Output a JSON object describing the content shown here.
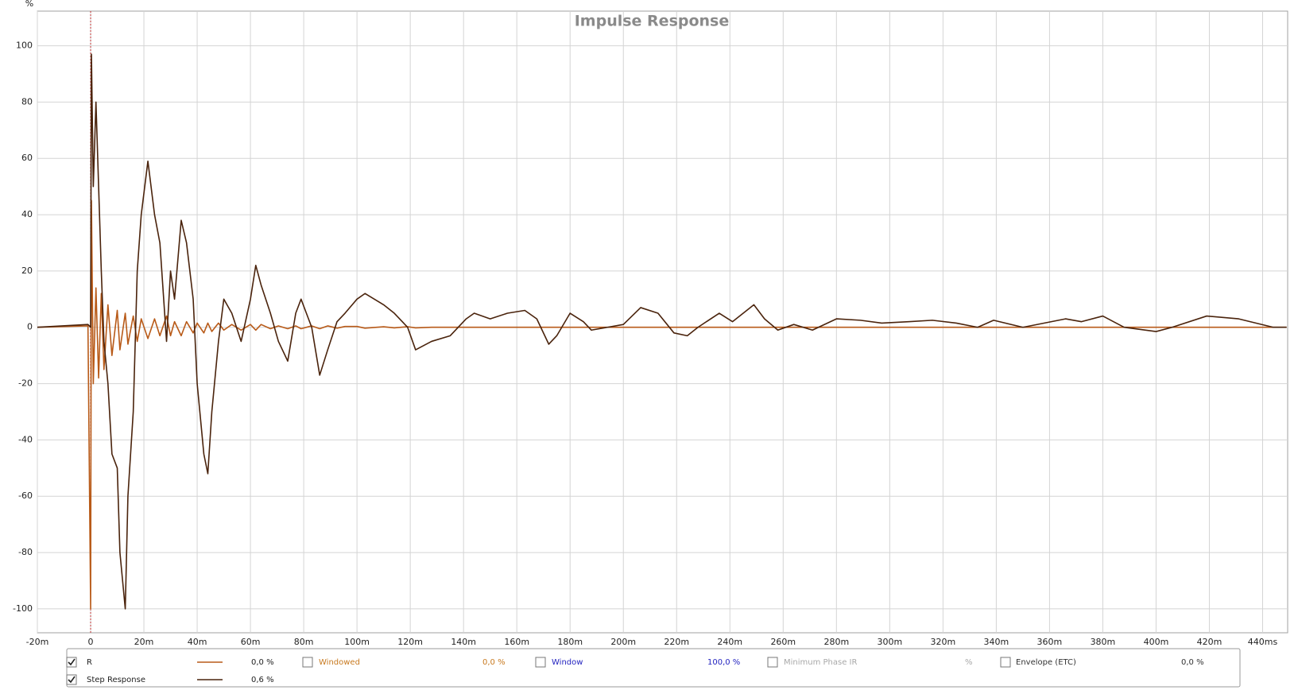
{
  "chart_data": {
    "type": "line",
    "title": "Impulse Response",
    "y_label": "%",
    "x": [
      -20,
      -1,
      0,
      0.3,
      1,
      2,
      3,
      4,
      5,
      6.5,
      8,
      10,
      11,
      13,
      14,
      16,
      17.5,
      19,
      21.5,
      24,
      26,
      28.5,
      30,
      31.5,
      34,
      36,
      38.5,
      40,
      42.5,
      44,
      45.5,
      48,
      50,
      53,
      56.5,
      60,
      62,
      64,
      67.5,
      70.5,
      74,
      77,
      79,
      83,
      86,
      89,
      92.5,
      95.5,
      100,
      103,
      110,
      114,
      119,
      122,
      128,
      135,
      141,
      144,
      150,
      156.5,
      163,
      167.5,
      172,
      175,
      180,
      185,
      188,
      194,
      200,
      206.5,
      213,
      219,
      224,
      228,
      236,
      241,
      249,
      253,
      258,
      264,
      271,
      280,
      289,
      297,
      307,
      316,
      325,
      333,
      339,
      350,
      366,
      372,
      380,
      388,
      400,
      406,
      419,
      431,
      444,
      449
    ],
    "series": [
      {
        "name": "R",
        "color": "#b85a18",
        "readout": "0,0 %",
        "checked": true,
        "values": [
          0,
          0.5,
          -100,
          45,
          -20,
          14,
          -18,
          12,
          -15,
          8,
          -10,
          6,
          -8,
          5,
          -6,
          4,
          -5,
          3,
          -4,
          3,
          -3,
          4,
          -3,
          2,
          -3,
          2,
          -2,
          1.5,
          -2,
          1.5,
          -1.5,
          1.5,
          -1,
          1,
          -1,
          1,
          -1,
          1,
          -0.5,
          0.5,
          -0.5,
          0.5,
          -0.5,
          0.5,
          -0.5,
          0.5,
          -0.3,
          0.3,
          0.3,
          -0.3,
          0.2,
          -0.2,
          0.2,
          -0.2,
          0,
          0,
          0,
          0,
          0,
          0,
          0,
          0,
          0,
          0,
          0,
          0,
          0,
          0,
          0,
          0,
          0,
          0,
          0,
          0,
          0,
          0,
          0,
          0,
          0,
          0,
          0,
          0,
          0,
          0,
          0,
          0,
          0,
          0,
          0,
          0,
          0,
          0,
          0,
          0,
          0,
          0,
          0,
          0,
          0,
          0
        ]
      },
      {
        "name": "Step Response",
        "color": "#4a230c",
        "readout": "0,6 %",
        "checked": true,
        "values": [
          0,
          1,
          0,
          97,
          50,
          80,
          50,
          20,
          -5,
          -20,
          -45,
          -50,
          -80,
          -100,
          -60,
          -30,
          20,
          40,
          59,
          40,
          30,
          -5,
          20,
          10,
          38,
          30,
          10,
          -20,
          -45,
          -52,
          -30,
          -5,
          10,
          5,
          -5,
          10,
          22,
          15,
          5,
          -5,
          -12,
          5,
          10,
          0,
          -17,
          -8,
          2,
          5,
          10,
          12,
          8,
          5,
          0,
          -8,
          -5,
          -3,
          3,
          5,
          3,
          5,
          6,
          3,
          -6,
          -3,
          5,
          2,
          -1,
          0,
          1,
          7,
          5,
          -2,
          -3,
          0,
          5,
          2,
          8,
          3,
          -1,
          1,
          -1,
          3,
          2.5,
          1.5,
          2,
          2.5,
          1.5,
          0,
          2.5,
          0,
          3,
          2,
          4,
          0,
          -1.5,
          0,
          4,
          3,
          0,
          0
        ]
      }
    ],
    "legend_extra": [
      {
        "name": "Windowed",
        "color": "#c87a20",
        "readout": "0,0 %",
        "checked": false
      },
      {
        "name": "Window",
        "color": "#2424c0",
        "readout": "100,0 %",
        "checked": false
      },
      {
        "name": "Minimum Phase IR",
        "color": "#a8a8a8",
        "readout": "%",
        "checked": false
      },
      {
        "name": "Envelope (ETC)",
        "color": "#333333",
        "readout": "0,0 %",
        "checked": false
      }
    ],
    "xlim": [
      -20,
      449.4
    ],
    "ylim": [
      -108.5,
      112.3
    ],
    "xticks": [
      {
        "value": -20,
        "label": "-20m"
      },
      0,
      {
        "value": 20,
        "label": "20m"
      },
      {
        "value": 40,
        "label": "40m"
      },
      {
        "value": 60,
        "label": "60m"
      },
      {
        "value": 80,
        "label": "80m"
      },
      {
        "value": 100,
        "label": "100m"
      },
      {
        "value": 120,
        "label": "120m"
      },
      {
        "value": 140,
        "label": "140m"
      },
      {
        "value": 160,
        "label": "160m"
      },
      {
        "value": 180,
        "label": "180m"
      },
      {
        "value": 200,
        "label": "200m"
      },
      {
        "value": 220,
        "label": "220m"
      },
      {
        "value": 240,
        "label": "240m"
      },
      {
        "value": 260,
        "label": "260m"
      },
      {
        "value": 280,
        "label": "280m"
      },
      {
        "value": 300,
        "label": "300m"
      },
      {
        "value": 320,
        "label": "320m"
      },
      {
        "value": 340,
        "label": "340m"
      },
      {
        "value": 360,
        "label": "360m"
      },
      {
        "value": 380,
        "label": "380m"
      },
      {
        "value": 400,
        "label": "400m"
      },
      {
        "value": 420,
        "label": "420m"
      },
      {
        "value": 440,
        "label": "440ms"
      }
    ],
    "yticks": [
      -100,
      -80,
      -60,
      -40,
      -20,
      0,
      20,
      40,
      60,
      80,
      100
    ],
    "grid": true
  }
}
